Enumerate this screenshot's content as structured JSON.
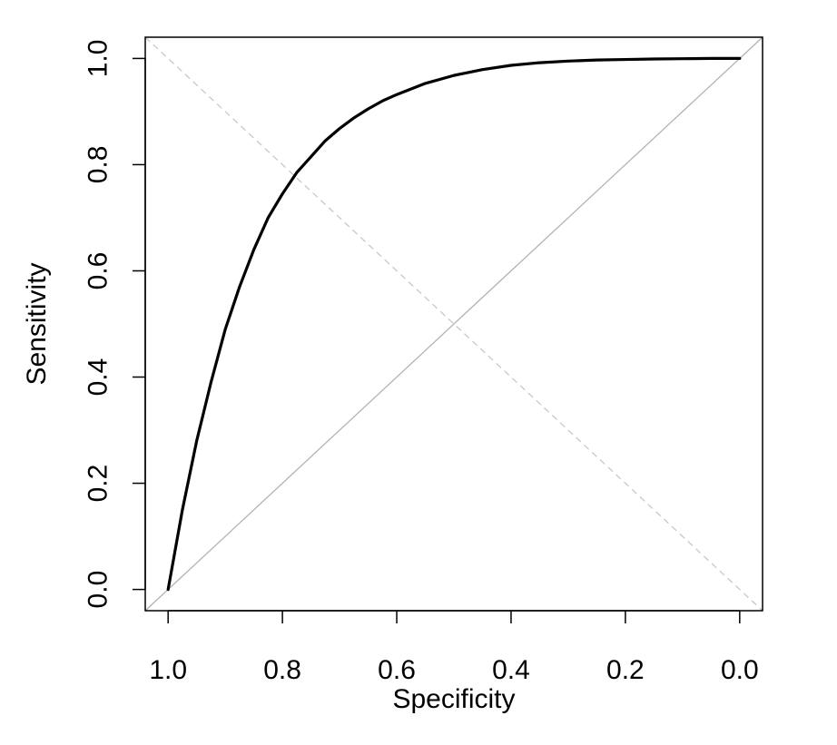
{
  "chart_data": {
    "type": "line",
    "xlabel": "Specificity",
    "ylabel": "Sensitivity",
    "x_reversed": true,
    "xlim": [
      1.04,
      -0.04
    ],
    "ylim": [
      -0.04,
      1.04
    ],
    "x_ticks": [
      {
        "value": 1.0,
        "label": "1.0"
      },
      {
        "value": 0.8,
        "label": "0.8"
      },
      {
        "value": 0.6,
        "label": "0.6"
      },
      {
        "value": 0.4,
        "label": "0.4"
      },
      {
        "value": 0.2,
        "label": "0.2"
      },
      {
        "value": 0.0,
        "label": "0.0"
      }
    ],
    "y_ticks": [
      {
        "value": 0.0,
        "label": "0.0"
      },
      {
        "value": 0.2,
        "label": "0.2"
      },
      {
        "value": 0.4,
        "label": "0.4"
      },
      {
        "value": 0.6,
        "label": "0.6"
      },
      {
        "value": 0.8,
        "label": "0.8"
      },
      {
        "value": 1.0,
        "label": "1.0"
      }
    ],
    "grid": false,
    "legend": "none",
    "series": [
      {
        "color": "#000000",
        "specificity": [
          1.0,
          0.975,
          0.95,
          0.925,
          0.9,
          0.875,
          0.85,
          0.825,
          0.8,
          0.775,
          0.75,
          0.725,
          0.7,
          0.675,
          0.65,
          0.625,
          0.6,
          0.55,
          0.5,
          0.45,
          0.4,
          0.35,
          0.3,
          0.25,
          0.2,
          0.15,
          0.1,
          0.05,
          0.0
        ],
        "sensitivity": [
          0.0,
          0.15,
          0.28,
          0.39,
          0.49,
          0.57,
          0.64,
          0.7,
          0.745,
          0.785,
          0.815,
          0.845,
          0.868,
          0.888,
          0.905,
          0.92,
          0.932,
          0.953,
          0.968,
          0.979,
          0.987,
          0.992,
          0.995,
          0.997,
          0.998,
          0.999,
          0.9995,
          1.0,
          1.0
        ]
      }
    ],
    "reference_lines": [
      {
        "kind": "identity",
        "style": "solid",
        "color": "#b3b3b3",
        "from": [
          1.04,
          -0.04
        ],
        "to": [
          -0.04,
          1.04
        ]
      },
      {
        "kind": "anti-diagonal",
        "style": "dashed",
        "color": "#c8c8c8",
        "from": [
          1.04,
          1.04
        ],
        "to": [
          -0.04,
          -0.04
        ]
      }
    ]
  }
}
